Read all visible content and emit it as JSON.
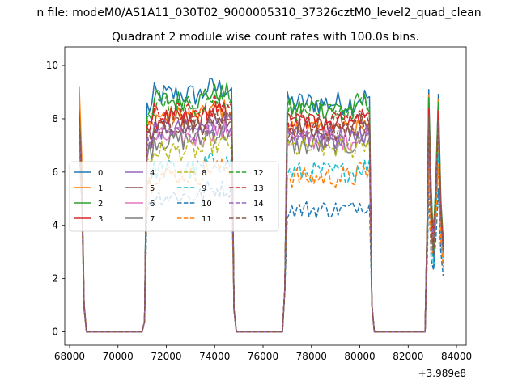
{
  "chart_data": {
    "type": "line",
    "suptitle": "n file: modeM0/AS1A11_030T02_9000005310_37326cztM0_level2_quad_clean",
    "title": "Quadrant 2 module wise count rates with 100.0s bins.",
    "xlabel": "",
    "ylabel": "",
    "x_offset_label": "+3.989e8",
    "xlim": [
      67800,
      84400
    ],
    "ylim": [
      -0.5,
      10.7
    ],
    "xticks": [
      68000,
      70000,
      72000,
      74000,
      76000,
      78000,
      80000,
      82000,
      84000
    ],
    "xtick_labels": [
      "68000",
      "70000",
      "72000",
      "74000",
      "76000",
      "78000",
      "80000",
      "82000",
      "84000"
    ],
    "yticks": [
      0,
      2,
      4,
      6,
      8,
      10
    ],
    "ytick_labels": [
      "0",
      "2",
      "4",
      "6",
      "8",
      "10"
    ],
    "grid": false,
    "legend": {
      "placement": "center-left",
      "columns": 4
    },
    "segments": [
      {
        "start": 68400,
        "end": 68700,
        "kind": "edge"
      },
      {
        "start": 71100,
        "end": 74900,
        "kind": "main"
      },
      {
        "start": 76900,
        "end": 80600,
        "kind": "main"
      },
      {
        "start": 82700,
        "end": 83400,
        "kind": "spikes"
      }
    ],
    "series": [
      {
        "name": "0",
        "color": "#1f77b4",
        "dash": false,
        "level_a": 8.9,
        "level_b": 8.6,
        "edge": 8.4,
        "spike": 9.1,
        "noise": 0.45
      },
      {
        "name": "1",
        "color": "#ff7f0e",
        "dash": false,
        "level_a": 8.1,
        "level_b": 7.6,
        "edge": 9.2,
        "spike": 8.9,
        "noise": 0.4
      },
      {
        "name": "2",
        "color": "#2ca02c",
        "dash": false,
        "level_a": 8.7,
        "level_b": 8.4,
        "edge": 8.3,
        "spike": 8.8,
        "noise": 0.4
      },
      {
        "name": "3",
        "color": "#d62728",
        "dash": false,
        "level_a": 8.0,
        "level_b": 7.9,
        "edge": 8.2,
        "spike": 8.5,
        "noise": 0.4
      },
      {
        "name": "4",
        "color": "#9467bd",
        "dash": false,
        "level_a": 7.6,
        "level_b": 7.3,
        "edge": 8.0,
        "spike": 8.0,
        "noise": 0.4
      },
      {
        "name": "5",
        "color": "#8c564b",
        "dash": false,
        "level_a": 7.8,
        "level_b": 7.7,
        "edge": 8.1,
        "spike": 8.2,
        "noise": 0.4
      },
      {
        "name": "6",
        "color": "#e377c2",
        "dash": false,
        "level_a": 7.3,
        "level_b": 7.2,
        "edge": 7.8,
        "spike": 7.8,
        "noise": 0.4
      },
      {
        "name": "7",
        "color": "#7f7f7f",
        "dash": false,
        "level_a": 7.2,
        "level_b": 7.0,
        "edge": 7.7,
        "spike": 7.6,
        "noise": 0.4
      },
      {
        "name": "8",
        "color": "#bcbd22",
        "dash": true,
        "level_a": 6.8,
        "level_b": 6.9,
        "edge": 7.5,
        "spike": 7.3,
        "noise": 0.4
      },
      {
        "name": "9",
        "color": "#17becf",
        "dash": true,
        "level_a": 6.1,
        "level_b": 6.0,
        "edge": 7.2,
        "spike": 6.8,
        "noise": 0.4
      },
      {
        "name": "10",
        "color": "#1f77b4",
        "dash": true,
        "level_a": 5.1,
        "level_b": 4.6,
        "edge": 6.8,
        "spike": 5.5,
        "noise": 0.35
      },
      {
        "name": "11",
        "color": "#ff7f0e",
        "dash": true,
        "level_a": 5.9,
        "level_b": 5.8,
        "edge": 7.0,
        "spike": 6.4,
        "noise": 0.4
      },
      {
        "name": "12",
        "color": "#2ca02c",
        "dash": true,
        "level_a": 8.5,
        "level_b": 8.3,
        "edge": 8.2,
        "spike": 8.7,
        "noise": 0.4
      },
      {
        "name": "13",
        "color": "#d62728",
        "dash": true,
        "level_a": 8.2,
        "level_b": 7.9,
        "edge": 8.0,
        "spike": 8.4,
        "noise": 0.4
      },
      {
        "name": "14",
        "color": "#9467bd",
        "dash": true,
        "level_a": 7.5,
        "level_b": 7.3,
        "edge": 7.8,
        "spike": 7.9,
        "noise": 0.4
      },
      {
        "name": "15",
        "color": "#8c564b",
        "dash": true,
        "level_a": 7.7,
        "level_b": 7.5,
        "edge": 7.9,
        "spike": 8.1,
        "noise": 0.4
      }
    ]
  }
}
